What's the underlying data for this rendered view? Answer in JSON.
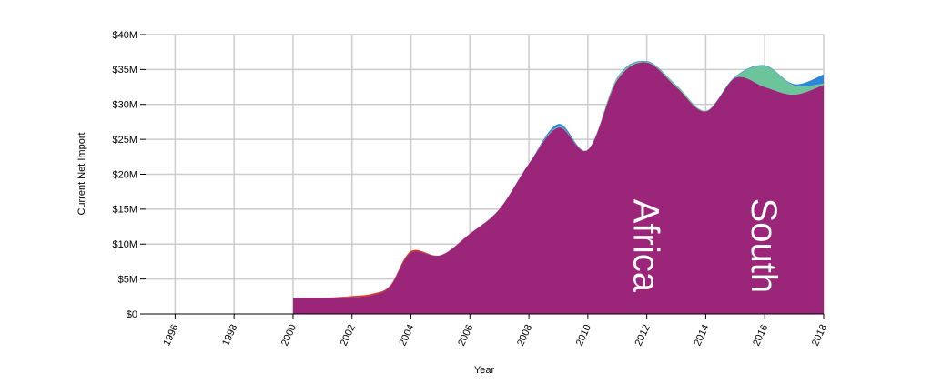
{
  "chart_data": {
    "type": "area",
    "stacked": true,
    "xlabel": "Year",
    "ylabel": "Current Net Import",
    "xlim": [
      1995,
      2018
    ],
    "ylim": [
      0,
      40000000
    ],
    "x_ticks": [
      "1996",
      "1998",
      "2000",
      "2002",
      "2004",
      "2006",
      "2008",
      "2010",
      "2012",
      "2014",
      "2016",
      "2018"
    ],
    "y_ticks": [
      "$0",
      "$5M",
      "$10M",
      "$15M",
      "$20M",
      "$25M",
      "$30M",
      "$35M",
      "$40M"
    ],
    "y_tick_values": [
      0,
      5000000,
      10000000,
      15000000,
      20000000,
      25000000,
      30000000,
      35000000,
      40000000
    ],
    "grid": true,
    "x": [
      2000,
      2001,
      2002,
      2002.7,
      2003.3,
      2004,
      2005,
      2006,
      2007,
      2008,
      2009,
      2010,
      2011,
      2012,
      2013,
      2014,
      2015,
      2016,
      2017,
      2018
    ],
    "series": [
      {
        "name": "",
        "color": "#9a2579",
        "values": [
          2300000,
          2300000,
          2400000,
          2700000,
          4000000,
          8800000,
          8400000,
          11500000,
          15000000,
          21500000,
          26700000,
          23500000,
          33500000,
          36000000,
          32500000,
          29000000,
          33800000,
          32500000,
          31400000,
          32800000
        ]
      },
      {
        "name": "",
        "color": "#d9341c",
        "values": [
          0,
          0,
          150000,
          200000,
          100000,
          200000,
          0,
          0,
          0,
          0,
          0,
          0,
          0,
          0,
          0,
          0,
          0,
          0,
          0,
          0
        ]
      },
      {
        "name": "",
        "color": "#6cc49a",
        "values": [
          0,
          0,
          0,
          0,
          0,
          0,
          0,
          0,
          0,
          0,
          100000,
          0,
          300000,
          100000,
          300000,
          100000,
          100000,
          3000000,
          1300000,
          200000
        ]
      },
      {
        "name": "",
        "color": "#2e86d6",
        "values": [
          0,
          0,
          0,
          0,
          0,
          0,
          0,
          0,
          0,
          0,
          400000,
          0,
          100000,
          100000,
          0,
          0,
          100000,
          100000,
          200000,
          1300000
        ]
      }
    ],
    "annotations": [
      {
        "text": "Africa",
        "x": 2012,
        "y": 15000000
      },
      {
        "text": "South",
        "x": 2016,
        "y": 15000000
      }
    ]
  }
}
